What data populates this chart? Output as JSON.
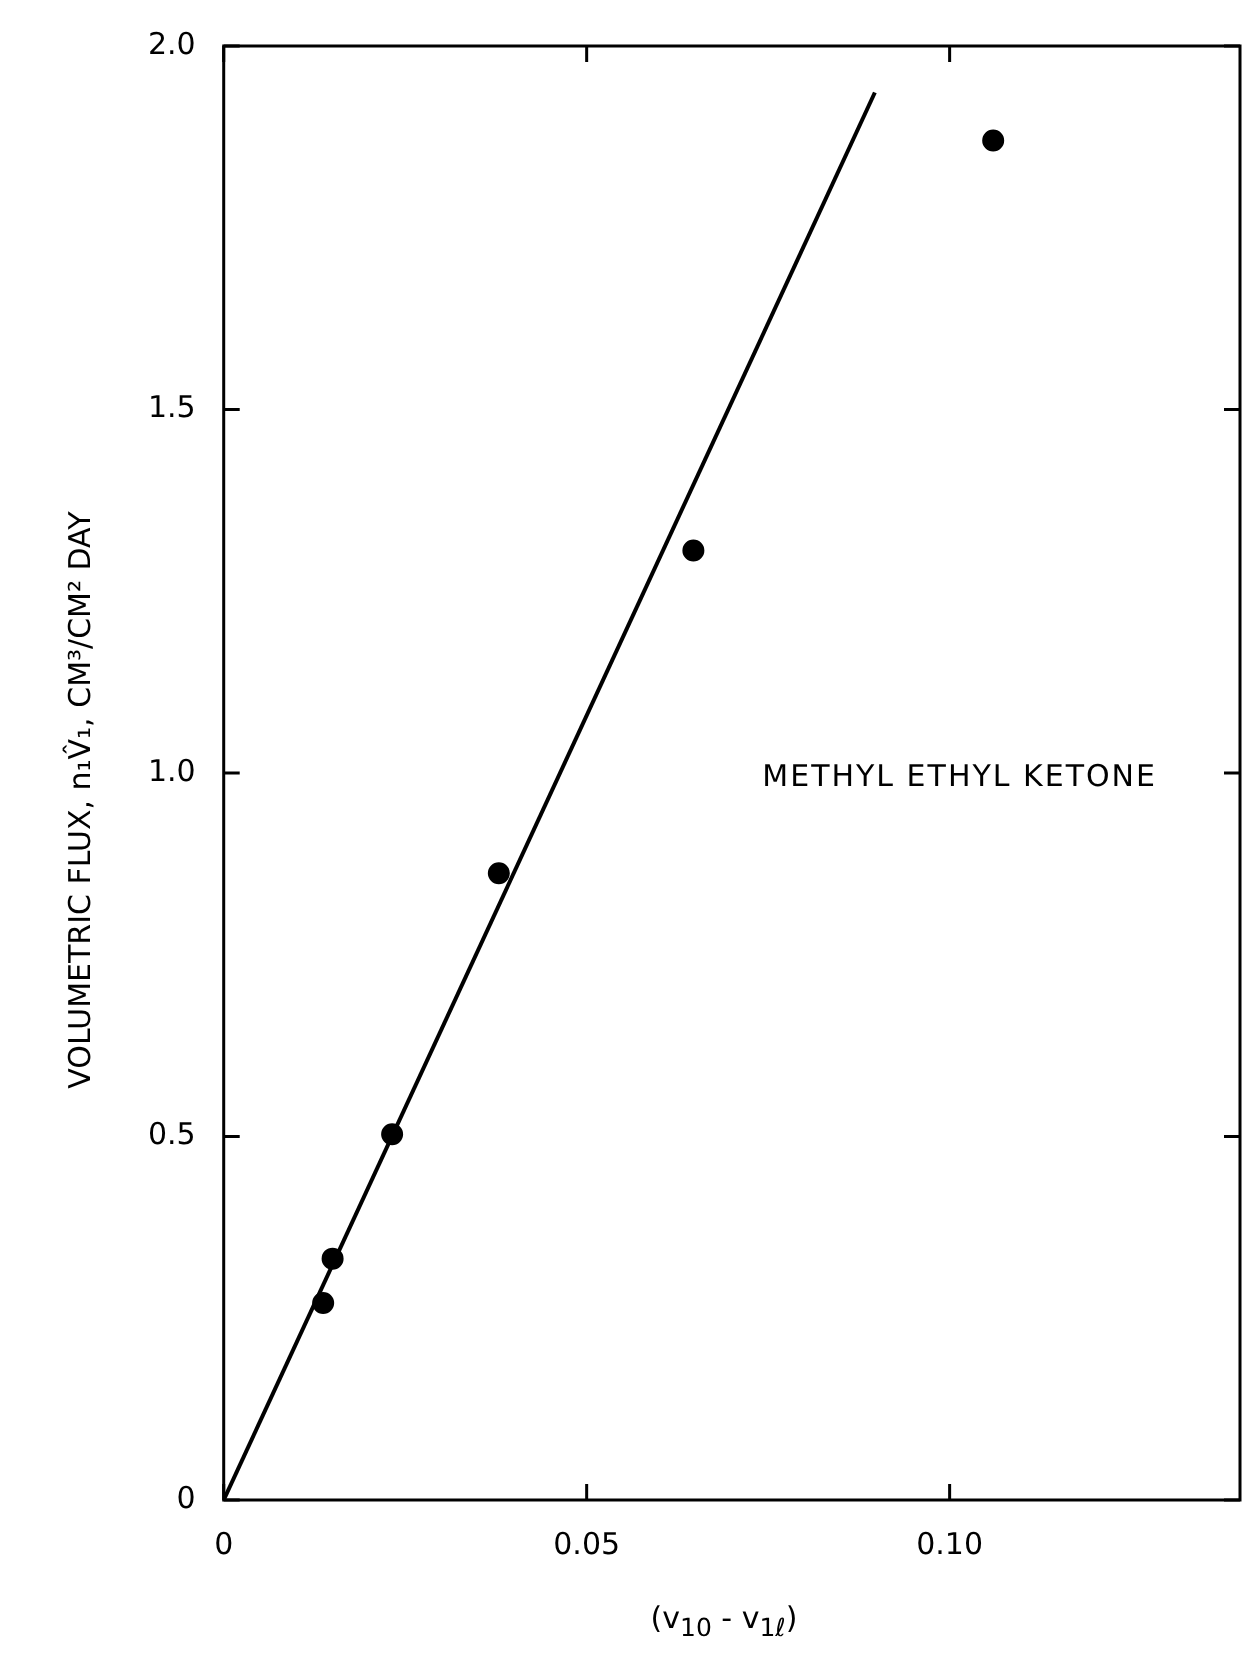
{
  "chart_data": {
    "type": "scatter",
    "xlabel": "(v$_{10}$ - v$_{1ℓ}$)",
    "ylabel": "VOLUMETRIC FLUX, n₁V̂₁, CM³/CM² DAY",
    "annotations": [
      "METHYL ETHYL KETONE"
    ],
    "xlim": [
      0,
      0.14
    ],
    "xticks": [
      0,
      0.05,
      {
        "value": 0.1,
        "label": "0.10"
      }
    ],
    "ylim": [
      0,
      2.0
    ],
    "yticks": [
      0,
      0.5,
      {
        "value": 1.0,
        "label": "1.0"
      },
      1.5,
      {
        "value": 2.0,
        "label": "2.0"
      }
    ],
    "grid": false,
    "legend": false,
    "marker": "circle",
    "series": [
      {
        "type": "scatter",
        "color": "#000000",
        "x": [
          0.0137,
          0.015,
          0.0232,
          0.0379,
          0.0647,
          0.106
        ],
        "values": [
          0.271,
          0.332,
          0.503,
          0.862,
          1.306,
          1.87
        ]
      },
      {
        "type": "line",
        "color": "#000000",
        "marker": "none",
        "x": [
          0,
          0.0897
        ],
        "values": [
          0,
          1.936
        ]
      }
    ]
  }
}
